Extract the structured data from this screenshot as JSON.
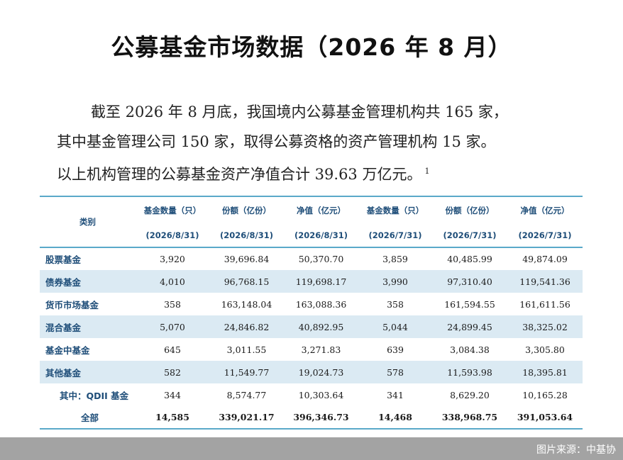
{
  "title": "公募基金市场数据（2026 年 8 月）",
  "paragraph": {
    "line1": "截至 2026 年 8 月底，我国境内公募基金管理机构共 165 家，",
    "line2": "其中基金管理公司 150 家，取得公募资格的资产管理机构 15 家。",
    "line3": "以上机构管理的公募基金资产净值合计 39.63 万亿元。",
    "footnote_mark": "1"
  },
  "table": {
    "category_header": "类别",
    "columns": [
      {
        "label": "基金数量（只）",
        "date": "(2026/8/31)"
      },
      {
        "label": "份额（亿份）",
        "date": "(2026/8/31)"
      },
      {
        "label": "净值（亿元）",
        "date": "(2026/8/31)"
      },
      {
        "label": "基金数量（只）",
        "date": "(2026/7/31)"
      },
      {
        "label": "份额（亿份）",
        "date": "(2026/7/31)"
      },
      {
        "label": "净值（亿元）",
        "date": "(2026/7/31)"
      }
    ],
    "rows": [
      {
        "category": "股票基金",
        "values": [
          "3,920",
          "39,696.84",
          "50,370.70",
          "3,859",
          "40,485.99",
          "49,874.09"
        ]
      },
      {
        "category": "债券基金",
        "values": [
          "4,010",
          "96,768.15",
          "119,698.17",
          "3,990",
          "97,310.40",
          "119,541.36"
        ]
      },
      {
        "category": "货币市场基金",
        "values": [
          "358",
          "163,148.04",
          "163,088.36",
          "358",
          "161,594.55",
          "161,611.56"
        ]
      },
      {
        "category": "混合基金",
        "values": [
          "5,070",
          "24,846.82",
          "40,892.95",
          "5,044",
          "24,899.45",
          "38,325.02"
        ]
      },
      {
        "category": "基金中基金",
        "values": [
          "645",
          "3,011.55",
          "3,271.83",
          "639",
          "3,084.38",
          "3,305.80"
        ]
      },
      {
        "category": "其他基金",
        "values": [
          "582",
          "11,549.77",
          "19,024.73",
          "578",
          "11,593.98",
          "18,395.81"
        ]
      },
      {
        "category": "其中：QDII 基金",
        "values": [
          "344",
          "8,574.77",
          "10,303.64",
          "341",
          "8,629.20",
          "10,165.28"
        ]
      },
      {
        "category": "全部",
        "values": [
          "14,585",
          "339,021.17",
          "396,346.73",
          "14,468",
          "338,968.75",
          "391,053.64"
        ]
      }
    ]
  },
  "source": "图片来源：中基协"
}
